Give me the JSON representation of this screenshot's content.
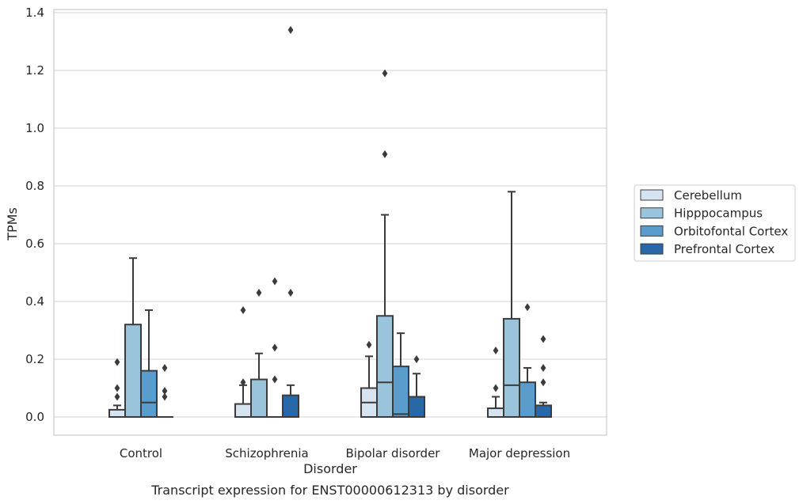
{
  "chart_data": {
    "type": "box",
    "caption": "Transcript expression for ENST00000612313 by disorder",
    "xlabel": "Disorder",
    "ylabel": "TPMs",
    "ylim": [
      -0.063,
      1.41
    ],
    "yticks": [
      0.0,
      0.2,
      0.4,
      0.6,
      0.8,
      1.0,
      1.2,
      1.4
    ],
    "ytick_labels": [
      "0.0",
      "0.2",
      "0.4",
      "0.6",
      "0.8",
      "1.0",
      "1.2",
      "1.4"
    ],
    "grid": "horizontal",
    "legend_position": "right",
    "categories": [
      "Control",
      "Schizophrenia",
      "Bipolar disorder",
      "Major depression"
    ],
    "series": [
      {
        "name": "Cerebellum",
        "color": "#d6e4f2",
        "boxes": [
          {
            "whisker_low": 0.0,
            "q1": 0.0,
            "median": 0.0,
            "q3": 0.025,
            "whisker_high": 0.04,
            "outliers": [
              0.19,
              0.1,
              0.07
            ]
          },
          {
            "whisker_low": 0.0,
            "q1": 0.0,
            "median": 0.0,
            "q3": 0.045,
            "whisker_high": 0.11,
            "outliers": [
              0.37,
              0.12
            ]
          },
          {
            "whisker_low": 0.0,
            "q1": 0.0,
            "median": 0.05,
            "q3": 0.1,
            "whisker_high": 0.21,
            "outliers": [
              0.25
            ]
          },
          {
            "whisker_low": 0.0,
            "q1": 0.0,
            "median": 0.0,
            "q3": 0.03,
            "whisker_high": 0.07,
            "outliers": [
              0.23,
              0.1
            ]
          }
        ]
      },
      {
        "name": "Hipppocampus",
        "color": "#9ac3dc",
        "boxes": [
          {
            "whisker_low": 0.0,
            "q1": 0.0,
            "median": 0.0,
            "q3": 0.32,
            "whisker_high": 0.55,
            "outliers": []
          },
          {
            "whisker_low": 0.0,
            "q1": 0.0,
            "median": 0.0,
            "q3": 0.13,
            "whisker_high": 0.22,
            "outliers": [
              0.43
            ]
          },
          {
            "whisker_low": 0.0,
            "q1": 0.0,
            "median": 0.12,
            "q3": 0.35,
            "whisker_high": 0.7,
            "outliers": [
              0.91,
              1.19
            ]
          },
          {
            "whisker_low": 0.0,
            "q1": 0.0,
            "median": 0.11,
            "q3": 0.34,
            "whisker_high": 0.78,
            "outliers": []
          }
        ]
      },
      {
        "name": "Orbitofontal Cortex",
        "color": "#5a9ccc",
        "boxes": [
          {
            "whisker_low": 0.0,
            "q1": 0.0,
            "median": 0.05,
            "q3": 0.16,
            "whisker_high": 0.37,
            "outliers": []
          },
          {
            "whisker_low": 0.0,
            "q1": 0.0,
            "median": 0.0,
            "q3": 0.0,
            "whisker_high": 0.0,
            "outliers": [
              0.47,
              0.24,
              0.13
            ]
          },
          {
            "whisker_low": 0.0,
            "q1": 0.0,
            "median": 0.01,
            "q3": 0.175,
            "whisker_high": 0.29,
            "outliers": []
          },
          {
            "whisker_low": 0.0,
            "q1": 0.0,
            "median": 0.0,
            "q3": 0.12,
            "whisker_high": 0.17,
            "outliers": [
              0.38
            ]
          }
        ]
      },
      {
        "name": "Prefrontal Cortex",
        "color": "#2868a8",
        "boxes": [
          {
            "whisker_low": 0.0,
            "q1": 0.0,
            "median": 0.0,
            "q3": 0.0,
            "whisker_high": 0.0,
            "outliers": [
              0.17,
              0.09,
              0.07
            ]
          },
          {
            "whisker_low": 0.0,
            "q1": 0.0,
            "median": 0.0,
            "q3": 0.075,
            "whisker_high": 0.11,
            "outliers": [
              0.43,
              1.34
            ]
          },
          {
            "whisker_low": 0.0,
            "q1": 0.0,
            "median": 0.0,
            "q3": 0.07,
            "whisker_high": 0.15,
            "outliers": [
              0.2
            ]
          },
          {
            "whisker_low": 0.0,
            "q1": 0.0,
            "median": 0.0,
            "q3": 0.04,
            "whisker_high": 0.05,
            "outliers": [
              0.27,
              0.17,
              0.12
            ]
          }
        ]
      }
    ]
  }
}
